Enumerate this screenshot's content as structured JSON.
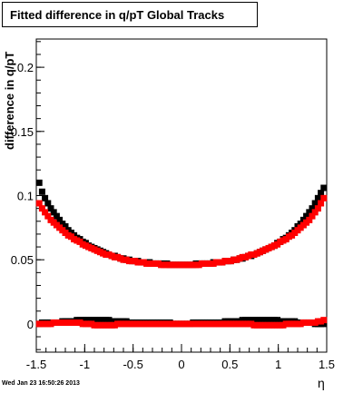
{
  "chart_data": {
    "type": "scatter",
    "title": "Fitted difference in q/pT  Global Tracks",
    "ylabel": "difference in q/pT",
    "xlabel": "η",
    "xlim": [
      -1.5,
      1.5
    ],
    "ylim": [
      -0.022,
      0.222
    ],
    "x_ticks": [
      "-1.5",
      "-1",
      "-0.5",
      "0",
      "0.5",
      "1",
      "1.5"
    ],
    "y_ticks": [
      "0",
      "0.05",
      "0.1",
      "0.15",
      "0.2"
    ],
    "grid": false,
    "marker": "square",
    "series": [
      {
        "color": "#000000",
        "x": [
          -1.47,
          -1.44,
          -1.41,
          -1.38,
          -1.35,
          -1.32,
          -1.29,
          -1.26,
          -1.23,
          -1.2,
          -1.17,
          -1.14,
          -1.11,
          -1.08,
          -1.05,
          -1.02,
          -0.99,
          -0.96,
          -0.93,
          -0.9,
          -0.87,
          -0.84,
          -0.81,
          -0.78,
          -0.75,
          -0.72,
          -0.69,
          -0.66,
          -0.63,
          -0.6,
          -0.57,
          -0.54,
          -0.51,
          -0.48,
          -0.45,
          -0.42,
          -0.39,
          -0.36,
          -0.33,
          -0.3,
          -0.27,
          -0.24,
          -0.21,
          -0.18,
          -0.15,
          -0.12,
          -0.09,
          -0.06,
          -0.03,
          0.0,
          0.03,
          0.06,
          0.09,
          0.12,
          0.15,
          0.18,
          0.21,
          0.24,
          0.27,
          0.3,
          0.33,
          0.36,
          0.39,
          0.42,
          0.45,
          0.48,
          0.51,
          0.54,
          0.57,
          0.6,
          0.63,
          0.66,
          0.69,
          0.72,
          0.75,
          0.78,
          0.81,
          0.84,
          0.87,
          0.9,
          0.93,
          0.96,
          0.99,
          1.02,
          1.05,
          1.08,
          1.11,
          1.14,
          1.17,
          1.2,
          1.23,
          1.26,
          1.29,
          1.32,
          1.35,
          1.38,
          1.41,
          1.44,
          1.47
        ],
        "upper": [
          0.11,
          0.103,
          0.098,
          0.094,
          0.09,
          0.087,
          0.084,
          0.081,
          0.078,
          0.076,
          0.073,
          0.071,
          0.069,
          0.067,
          0.066,
          0.064,
          0.063,
          0.061,
          0.06,
          0.059,
          0.058,
          0.057,
          0.056,
          0.055,
          0.054,
          0.053,
          0.053,
          0.052,
          0.051,
          0.051,
          0.05,
          0.05,
          0.049,
          0.049,
          0.049,
          0.048,
          0.048,
          0.048,
          0.048,
          0.047,
          0.047,
          0.047,
          0.047,
          0.047,
          0.047,
          0.046,
          0.046,
          0.046,
          0.046,
          0.046,
          0.046,
          0.046,
          0.046,
          0.046,
          0.047,
          0.047,
          0.047,
          0.047,
          0.047,
          0.047,
          0.048,
          0.048,
          0.048,
          0.048,
          0.049,
          0.049,
          0.049,
          0.05,
          0.05,
          0.051,
          0.051,
          0.052,
          0.053,
          0.053,
          0.054,
          0.055,
          0.056,
          0.057,
          0.058,
          0.059,
          0.06,
          0.061,
          0.063,
          0.064,
          0.066,
          0.067,
          0.069,
          0.071,
          0.073,
          0.076,
          0.078,
          0.081,
          0.084,
          0.087,
          0.09,
          0.094,
          0.098,
          0.102,
          0.106
        ],
        "lower": [
          0.0,
          0.001,
          0.001,
          0.001,
          0.001,
          0.001,
          0.001,
          0.001,
          0.002,
          0.002,
          0.002,
          0.002,
          0.002,
          0.003,
          0.003,
          0.003,
          0.003,
          0.003,
          0.003,
          0.003,
          0.003,
          0.003,
          0.003,
          0.003,
          0.003,
          0.002,
          0.002,
          0.002,
          0.002,
          0.002,
          0.002,
          0.001,
          0.001,
          0.001,
          0.001,
          0.001,
          0.001,
          0.001,
          0.001,
          0.001,
          0.001,
          0.001,
          0.001,
          0.001,
          0.001,
          0.001,
          0.0,
          0.0,
          0.0,
          0.0,
          0.0,
          0.0,
          0.0,
          0.001,
          0.001,
          0.001,
          0.001,
          0.001,
          0.001,
          0.001,
          0.001,
          0.001,
          0.001,
          0.001,
          0.002,
          0.002,
          0.002,
          0.002,
          0.002,
          0.002,
          0.003,
          0.003,
          0.003,
          0.003,
          0.003,
          0.003,
          0.003,
          0.003,
          0.003,
          0.003,
          0.003,
          0.003,
          0.003,
          0.002,
          0.002,
          0.002,
          0.002,
          0.002,
          0.002,
          0.001,
          0.001,
          0.001,
          0.001,
          0.001,
          0.001,
          0.0,
          0.0,
          0.0,
          0.0
        ]
      },
      {
        "color": "#ff0000",
        "x": [
          -1.47,
          -1.44,
          -1.41,
          -1.38,
          -1.35,
          -1.32,
          -1.29,
          -1.26,
          -1.23,
          -1.2,
          -1.17,
          -1.14,
          -1.11,
          -1.08,
          -1.05,
          -1.02,
          -0.99,
          -0.96,
          -0.93,
          -0.9,
          -0.87,
          -0.84,
          -0.81,
          -0.78,
          -0.75,
          -0.72,
          -0.69,
          -0.66,
          -0.63,
          -0.6,
          -0.57,
          -0.54,
          -0.51,
          -0.48,
          -0.45,
          -0.42,
          -0.39,
          -0.36,
          -0.33,
          -0.3,
          -0.27,
          -0.24,
          -0.21,
          -0.18,
          -0.15,
          -0.12,
          -0.09,
          -0.06,
          -0.03,
          0.0,
          0.03,
          0.06,
          0.09,
          0.12,
          0.15,
          0.18,
          0.21,
          0.24,
          0.27,
          0.3,
          0.33,
          0.36,
          0.39,
          0.42,
          0.45,
          0.48,
          0.51,
          0.54,
          0.57,
          0.6,
          0.63,
          0.66,
          0.69,
          0.72,
          0.75,
          0.78,
          0.81,
          0.84,
          0.87,
          0.9,
          0.93,
          0.96,
          0.99,
          1.02,
          1.05,
          1.08,
          1.11,
          1.14,
          1.17,
          1.2,
          1.23,
          1.26,
          1.29,
          1.32,
          1.35,
          1.38,
          1.41,
          1.44,
          1.47
        ],
        "upper": [
          0.094,
          0.09,
          0.087,
          0.084,
          0.081,
          0.079,
          0.077,
          0.075,
          0.073,
          0.071,
          0.069,
          0.068,
          0.066,
          0.065,
          0.064,
          0.062,
          0.061,
          0.06,
          0.059,
          0.058,
          0.057,
          0.056,
          0.055,
          0.054,
          0.054,
          0.053,
          0.052,
          0.052,
          0.051,
          0.05,
          0.05,
          0.049,
          0.049,
          0.049,
          0.048,
          0.048,
          0.048,
          0.047,
          0.047,
          0.047,
          0.047,
          0.047,
          0.046,
          0.046,
          0.046,
          0.046,
          0.046,
          0.046,
          0.046,
          0.046,
          0.046,
          0.046,
          0.046,
          0.046,
          0.046,
          0.046,
          0.047,
          0.047,
          0.047,
          0.047,
          0.047,
          0.048,
          0.048,
          0.048,
          0.049,
          0.049,
          0.049,
          0.05,
          0.05,
          0.051,
          0.052,
          0.052,
          0.053,
          0.054,
          0.054,
          0.055,
          0.056,
          0.057,
          0.058,
          0.059,
          0.06,
          0.061,
          0.062,
          0.064,
          0.065,
          0.066,
          0.068,
          0.069,
          0.071,
          0.073,
          0.075,
          0.077,
          0.079,
          0.081,
          0.084,
          0.087,
          0.09,
          0.094,
          0.098
        ],
        "lower": [
          0.0,
          0.0,
          0.0,
          0.0,
          0.0,
          0.001,
          0.001,
          0.001,
          0.001,
          0.001,
          0.001,
          0.001,
          0.001,
          0.001,
          0.001,
          0.0,
          0.0,
          0.0,
          0.0,
          -0.001,
          -0.001,
          -0.001,
          -0.001,
          -0.001,
          -0.001,
          -0.001,
          -0.001,
          0.0,
          0.0,
          0.0,
          0.0,
          0.0,
          0.0,
          0.0,
          0.0,
          0.0,
          0.0,
          0.0,
          0.0,
          0.0,
          0.0,
          0.0,
          0.0,
          0.0,
          0.0,
          0.0,
          0.0,
          0.0,
          0.0,
          0.0,
          0.0,
          0.0,
          0.0,
          0.0,
          0.0,
          0.0,
          0.0,
          0.0,
          0.0,
          0.0,
          0.0,
          0.0,
          0.0,
          0.0,
          0.0,
          0.0,
          0.0,
          0.0,
          0.0,
          0.0,
          0.0,
          0.0,
          0.0,
          0.0,
          -0.001,
          -0.001,
          -0.001,
          -0.001,
          -0.001,
          -0.001,
          -0.001,
          -0.001,
          -0.001,
          -0.001,
          -0.001,
          0.0,
          0.0,
          0.0,
          0.0,
          0.0,
          0.0,
          0.001,
          0.001,
          0.001,
          0.001,
          0.001,
          0.002,
          0.002,
          0.003
        ]
      }
    ]
  },
  "footer": {
    "timestamp": "Wed Jan 23 16:50:26 2013"
  }
}
